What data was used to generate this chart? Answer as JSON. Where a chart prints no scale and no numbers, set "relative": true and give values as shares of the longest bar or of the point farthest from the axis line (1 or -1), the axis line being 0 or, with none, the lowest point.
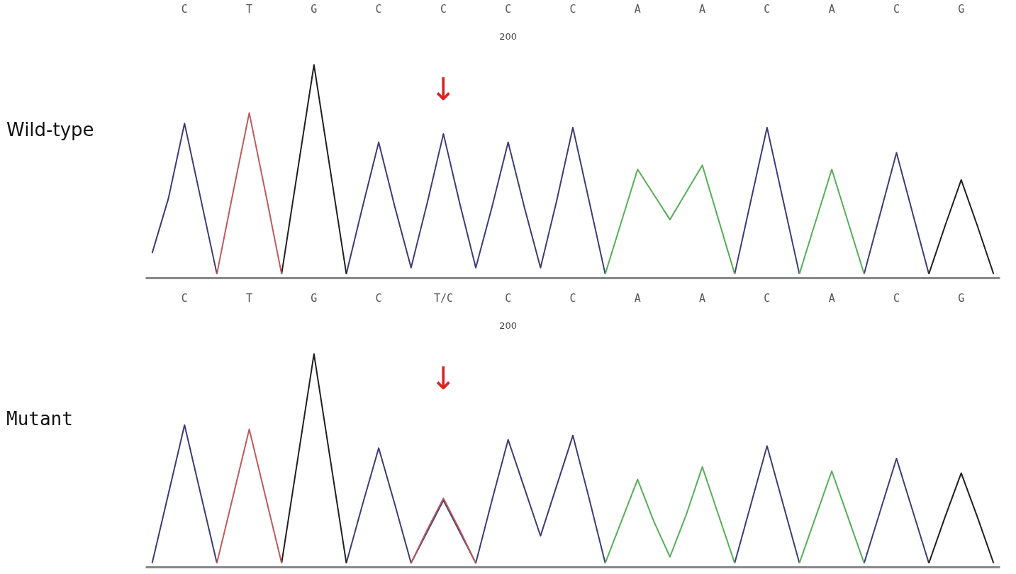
{
  "chart_data": [
    {
      "type": "line",
      "title": "Wild-type",
      "relative": true,
      "categories": [
        null,
        null,
        "C",
        null,
        null,
        null,
        "T",
        null,
        null,
        null,
        "G",
        null,
        null,
        null,
        "C",
        null,
        null,
        null,
        "C",
        null,
        null,
        null,
        "C",
        null,
        null,
        null,
        "C",
        null,
        null,
        null,
        "A",
        null,
        null,
        null,
        "A",
        null,
        null,
        null,
        "C",
        null,
        null,
        null,
        "A",
        null,
        null,
        null,
        "C",
        null,
        null,
        null,
        "G",
        null,
        null
      ],
      "annotations": [
        "200",
        "↓"
      ],
      "series": [
        {
          "color": "#3c3c78",
          "values": [
            0.1,
            0.36,
            0.72,
            0.36,
            0,
            null,
            null,
            null,
            null,
            null,
            null,
            null,
            0,
            0.32,
            0.63,
            0.32,
            0.03,
            0.34,
            0.67,
            0.34,
            0.03,
            0.32,
            0.63,
            0.32,
            0.03,
            0.35,
            0.7,
            0.35,
            0,
            null,
            null,
            null,
            null,
            null,
            null,
            null,
            0,
            0.35,
            0.7,
            0.35,
            0,
            null,
            null,
            null,
            0,
            0.29,
            0.58,
            0.29,
            0,
            null,
            null,
            null,
            null
          ]
        },
        {
          "color": "#202020",
          "values": [
            null,
            null,
            null,
            null,
            null,
            null,
            null,
            null,
            0,
            0.5,
            1,
            0.5,
            0,
            null,
            null,
            null,
            null,
            null,
            null,
            null,
            null,
            null,
            null,
            null,
            null,
            null,
            null,
            null,
            null,
            null,
            null,
            null,
            null,
            null,
            null,
            null,
            null,
            null,
            null,
            null,
            null,
            null,
            null,
            null,
            null,
            null,
            null,
            null,
            0,
            0.23,
            0.45,
            0.23,
            0
          ]
        },
        {
          "color": "#c05a5a",
          "values": [
            null,
            null,
            null,
            null,
            0,
            0.39,
            0.77,
            0.39,
            0,
            null,
            null,
            null,
            null,
            null,
            null,
            null,
            null,
            null,
            null,
            null,
            null,
            null,
            null,
            null,
            null,
            null,
            null,
            null,
            null,
            null,
            null,
            null,
            null,
            null,
            null,
            null,
            null,
            null,
            null,
            null,
            null,
            null,
            null,
            null,
            null,
            null,
            null,
            null,
            null,
            null,
            null,
            null,
            null
          ]
        },
        {
          "color": "#55b055",
          "values": [
            null,
            null,
            null,
            null,
            null,
            null,
            null,
            null,
            null,
            null,
            null,
            null,
            null,
            null,
            null,
            null,
            null,
            null,
            null,
            null,
            null,
            null,
            null,
            null,
            null,
            null,
            null,
            null,
            0,
            0.25,
            0.5,
            0.38,
            0.26,
            0.39,
            0.52,
            0.26,
            0,
            null,
            null,
            null,
            0,
            0.25,
            0.5,
            0.25,
            0,
            null,
            null,
            null,
            null,
            null,
            null,
            null,
            null
          ]
        }
      ]
    },
    {
      "type": "line",
      "title": "Mutant",
      "relative": true,
      "categories": [
        null,
        null,
        "C",
        null,
        null,
        null,
        "T",
        null,
        null,
        null,
        "G",
        null,
        null,
        null,
        "C",
        null,
        null,
        null,
        "T/C",
        null,
        null,
        null,
        "C",
        null,
        null,
        null,
        "C",
        null,
        null,
        null,
        "A",
        null,
        null,
        null,
        "A",
        null,
        null,
        null,
        "C",
        null,
        null,
        null,
        "A",
        null,
        null,
        null,
        "C",
        null,
        null,
        null,
        "G",
        null,
        null
      ],
      "annotations": [
        "200",
        "↓"
      ],
      "series": [
        {
          "color": "#3c3c78",
          "values": [
            0,
            0.33,
            0.66,
            0.33,
            0,
            null,
            null,
            null,
            null,
            null,
            null,
            null,
            0,
            0.28,
            0.55,
            0.28,
            0,
            0.15,
            0.3,
            0.15,
            0,
            0.3,
            0.59,
            0.36,
            0.13,
            0.37,
            0.61,
            0.31,
            0,
            null,
            null,
            null,
            null,
            null,
            null,
            null,
            0,
            0.28,
            0.56,
            0.28,
            0,
            null,
            null,
            null,
            0,
            0.25,
            0.5,
            0.25,
            0,
            null,
            null,
            null,
            null
          ]
        },
        {
          "color": "#202020",
          "values": [
            null,
            null,
            null,
            null,
            null,
            null,
            null,
            null,
            0,
            0.5,
            1,
            0.5,
            0,
            null,
            null,
            null,
            null,
            null,
            null,
            null,
            null,
            null,
            null,
            null,
            null,
            null,
            null,
            null,
            null,
            null,
            null,
            null,
            null,
            null,
            null,
            null,
            null,
            null,
            null,
            null,
            null,
            null,
            null,
            null,
            null,
            null,
            null,
            null,
            0,
            0.22,
            0.43,
            0.22,
            0
          ]
        },
        {
          "color": "#c05a5a",
          "values": [
            null,
            null,
            null,
            null,
            0,
            0.32,
            0.64,
            0.32,
            0,
            null,
            null,
            null,
            null,
            null,
            null,
            null,
            0,
            0.16,
            0.31,
            0.16,
            0,
            null,
            null,
            null,
            null,
            null,
            null,
            null,
            null,
            null,
            null,
            null,
            null,
            null,
            null,
            null,
            null,
            null,
            null,
            null,
            null,
            null,
            null,
            null,
            null,
            null,
            null,
            null,
            null,
            null,
            null,
            null,
            null
          ]
        },
        {
          "color": "#55b055",
          "values": [
            null,
            null,
            null,
            null,
            null,
            null,
            null,
            null,
            null,
            null,
            null,
            null,
            null,
            null,
            null,
            null,
            null,
            null,
            null,
            null,
            null,
            null,
            null,
            null,
            null,
            null,
            null,
            null,
            0,
            0.2,
            0.4,
            0.2,
            0.03,
            0.23,
            0.46,
            0.23,
            0,
            null,
            null,
            null,
            0,
            0.22,
            0.44,
            0.22,
            0,
            null,
            null,
            null,
            null,
            null,
            null,
            null,
            null
          ]
        }
      ]
    }
  ]
}
